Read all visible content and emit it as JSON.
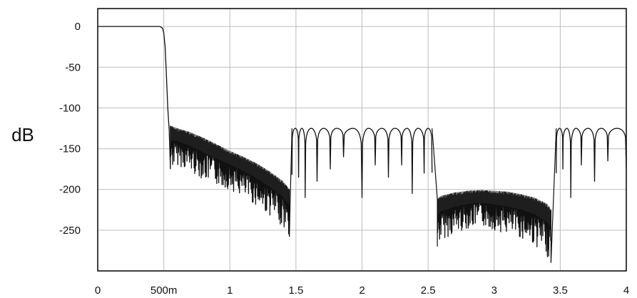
{
  "chart_data": {
    "type": "line",
    "title": "",
    "xlabel": "",
    "ylabel": "dB",
    "xlim": [
      0,
      4
    ],
    "ylim": [
      -300,
      22
    ],
    "grid": true,
    "legend": "none",
    "x_ticks": [
      {
        "value": 0,
        "label": "0"
      },
      {
        "value": 0.5,
        "label": "500m"
      },
      {
        "value": 1,
        "label": "1"
      },
      {
        "value": 1.5,
        "label": "1.5"
      },
      {
        "value": 2,
        "label": "2"
      },
      {
        "value": 2.5,
        "label": "2.5"
      },
      {
        "value": 3,
        "label": "3"
      },
      {
        "value": 3.5,
        "label": "3.5"
      },
      {
        "value": 4,
        "label": "4"
      }
    ],
    "y_ticks": [
      {
        "value": 0,
        "label": "0"
      },
      {
        "value": -50,
        "label": "-50"
      },
      {
        "value": -100,
        "label": "-100"
      },
      {
        "value": -150,
        "label": "-150"
      },
      {
        "value": -200,
        "label": "-200"
      },
      {
        "value": -250,
        "label": "-250"
      }
    ],
    "series": [
      {
        "line_color": "#111111",
        "passband": {
          "x": [
            0,
            0.47
          ],
          "y": [
            0,
            0
          ]
        },
        "transition": {
          "x": [
            0.47,
            0.49,
            0.5,
            0.51,
            0.52,
            0.53,
            0.54
          ],
          "y": [
            0,
            -2,
            -8,
            -25,
            -60,
            -100,
            -125
          ]
        },
        "stopband_1_envelope": {
          "x": [
            0.55,
            0.6,
            0.7,
            0.8,
            0.9,
            1.0,
            1.1,
            1.2,
            1.3,
            1.4,
            1.45
          ],
          "upper": [
            -122,
            -125,
            -130,
            -137,
            -145,
            -153,
            -160,
            -168,
            -178,
            -190,
            -200
          ],
          "lower": [
            -175,
            -170,
            -178,
            -188,
            -195,
            -200,
            -210,
            -220,
            -232,
            -245,
            -258
          ]
        },
        "image_band_1": {
          "x_start": 1.47,
          "x_end": 2.53,
          "lobe_peak": -125,
          "null_x": [
            1.47,
            1.52,
            1.57,
            1.66,
            1.76,
            1.86,
            2.0,
            2.1,
            2.2,
            2.3,
            2.38,
            2.47,
            2.53
          ],
          "null_y": [
            -182,
            -185,
            -210,
            -190,
            -175,
            -160,
            -210,
            -170,
            -185,
            -170,
            -205,
            -180,
            -180
          ]
        },
        "stopband_2_envelope": {
          "x": [
            2.57,
            2.6,
            2.7,
            2.8,
            2.9,
            3.0,
            3.1,
            3.2,
            3.3,
            3.4,
            3.43
          ],
          "upper": [
            -212,
            -208,
            -204,
            -202,
            -201,
            -202,
            -203,
            -206,
            -210,
            -218,
            -225
          ],
          "lower": [
            -270,
            -262,
            -255,
            -248,
            -245,
            -250,
            -255,
            -260,
            -268,
            -282,
            -290
          ]
        },
        "image_band_2": {
          "x_start": 3.47,
          "x_end": 4.0,
          "lobe_peak": -125,
          "null_x": [
            3.47,
            3.52,
            3.58,
            3.66,
            3.76,
            3.86,
            4.0
          ],
          "null_y": [
            -180,
            -175,
            -210,
            -170,
            -190,
            -165,
            -175
          ]
        }
      }
    ]
  }
}
